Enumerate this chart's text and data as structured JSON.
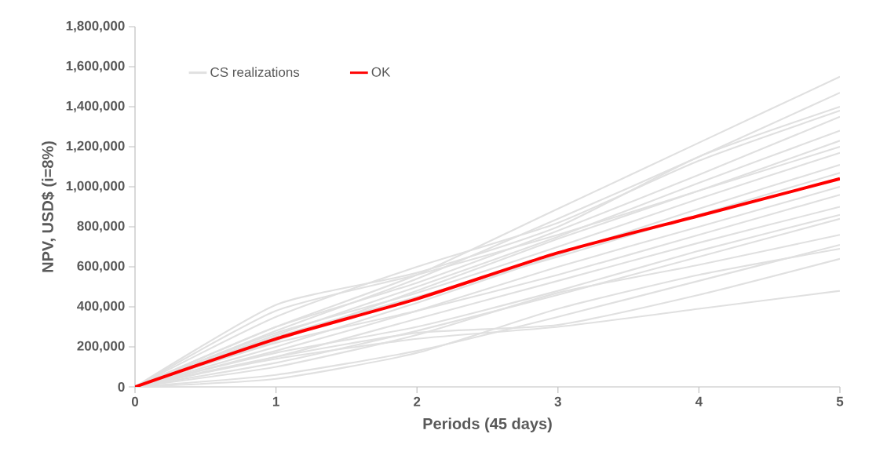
{
  "chart_data": {
    "type": "line",
    "xlabel": "Periods (45 days)",
    "ylabel": "NPV, USD$ (i=8%)",
    "x": [
      0,
      1,
      2,
      3,
      4,
      5
    ],
    "xlim": [
      0,
      5
    ],
    "xticks": [
      0,
      1,
      2,
      3,
      4,
      5
    ],
    "ylim": [
      0,
      1800000
    ],
    "yticks": [
      0,
      {
        "value": 200000,
        "label": "200,000"
      },
      {
        "value": 400000,
        "label": "400,000"
      },
      {
        "value": 600000,
        "label": "600,000"
      },
      {
        "value": 800000,
        "label": "800,000"
      },
      {
        "value": 1000000,
        "label": "1,000,000"
      },
      {
        "value": 1200000,
        "label": "1,200,000"
      },
      {
        "value": 1400000,
        "label": "1,400,000"
      },
      {
        "value": 1600000,
        "label": "1,600,000"
      },
      {
        "value": 1800000,
        "label": "1,800,000"
      }
    ],
    "legend": "top left",
    "series": [
      {
        "name": "CS realizations",
        "color": "#e0e0e0",
        "values": [
          0,
          300000,
          560000,
          890000,
          1220000,
          1550000
        ]
      },
      {
        "color": "#e0e0e0",
        "values": [
          0,
          280000,
          540000,
          840000,
          1150000,
          1470000
        ]
      },
      {
        "color": "#e0e0e0",
        "values": [
          0,
          410000,
          570000,
          800000,
          1150000,
          1400000
        ]
      },
      {
        "color": "#e0e0e0",
        "values": [
          0,
          350000,
          600000,
          820000,
          1130000,
          1380000
        ]
      },
      {
        "color": "#e0e0e0",
        "values": [
          0,
          300000,
          520000,
          780000,
          1060000,
          1350000
        ]
      },
      {
        "color": "#e0e0e0",
        "values": [
          0,
          260000,
          500000,
          750000,
          1020000,
          1280000
        ]
      },
      {
        "color": "#e0e0e0",
        "values": [
          0,
          230000,
          480000,
          740000,
          980000,
          1230000
        ]
      },
      {
        "color": "#e0e0e0",
        "values": [
          0,
          380000,
          560000,
          760000,
          980000,
          1200000
        ]
      },
      {
        "color": "#e0e0e0",
        "values": [
          0,
          270000,
          470000,
          700000,
          940000,
          1170000
        ]
      },
      {
        "color": "#e0e0e0",
        "values": [
          0,
          200000,
          420000,
          660000,
          890000,
          1110000
        ]
      },
      {
        "color": "#e0e0e0",
        "values": [
          0,
          250000,
          450000,
          650000,
          860000,
          1070000
        ]
      },
      {
        "color": "#e0e0e0",
        "values": [
          0,
          180000,
          380000,
          600000,
          800000,
          1000000
        ]
      },
      {
        "color": "#e0e0e0",
        "values": [
          0,
          220000,
          380000,
          560000,
          760000,
          960000
        ]
      },
      {
        "color": "#e0e0e0",
        "values": [
          0,
          150000,
          340000,
          530000,
          720000,
          900000
        ]
      },
      {
        "color": "#e0e0e0",
        "values": [
          0,
          170000,
          300000,
          480000,
          680000,
          860000
        ]
      },
      {
        "color": "#e0e0e0",
        "values": [
          0,
          120000,
          280000,
          460000,
          650000,
          840000
        ]
      },
      {
        "color": "#e0e0e0",
        "values": [
          0,
          100000,
          260000,
          470000,
          610000,
          760000
        ]
      },
      {
        "color": "#e0e0e0",
        "values": [
          0,
          60000,
          180000,
          350000,
          530000,
          710000
        ]
      },
      {
        "color": "#e0e0e0",
        "values": [
          0,
          40000,
          170000,
          390000,
          560000,
          690000
        ]
      },
      {
        "color": "#e0e0e0",
        "values": [
          0,
          150000,
          270000,
          310000,
          460000,
          640000
        ]
      },
      {
        "color": "#e0e0e0",
        "values": [
          0,
          140000,
          240000,
          300000,
          390000,
          480000
        ]
      },
      {
        "name": "OK",
        "color": "#ff0000",
        "values": [
          0,
          240000,
          440000,
          670000,
          855000,
          1040000
        ]
      }
    ]
  }
}
